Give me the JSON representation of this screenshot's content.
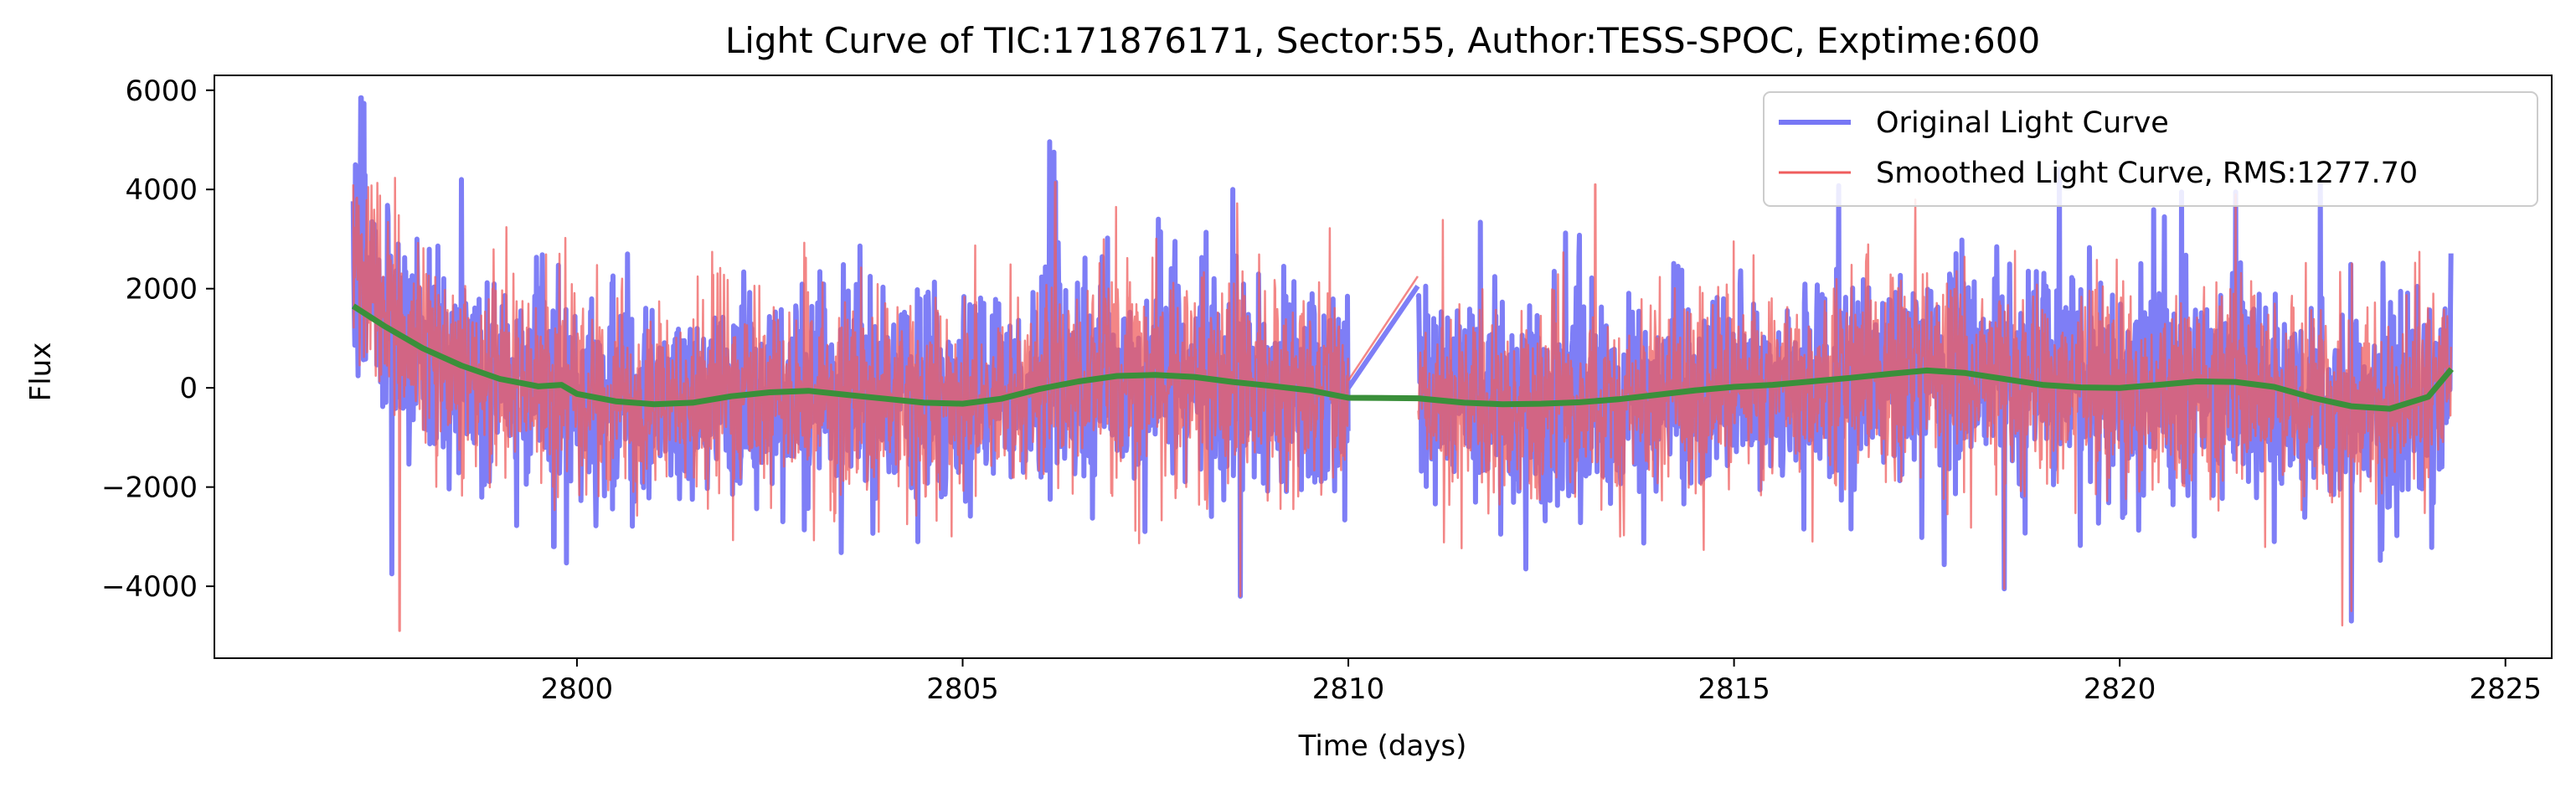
{
  "chart_data": {
    "type": "line",
    "title": "Light Curve of TIC:171876171, Sector:55, Author:TESS-SPOC, Exptime:600",
    "xlabel": "Time (days)",
    "ylabel": "Flux",
    "xlim": [
      2795.3,
      2825.6
    ],
    "ylim": [
      -5450,
      6300
    ],
    "x_ticks": [
      2800,
      2805,
      2810,
      2815,
      2820,
      2825
    ],
    "y_ticks": [
      -4000,
      -2000,
      0,
      2000,
      4000,
      6000
    ],
    "x_tick_labels": [
      "2800",
      "2805",
      "2810",
      "2815",
      "2820",
      "2825"
    ],
    "y_tick_labels": [
      "−4000",
      "−2000",
      "0",
      "2000",
      "4000",
      "6000"
    ],
    "grid": false,
    "legend_position": "top-right",
    "gap": [
      2810.0,
      2810.9
    ],
    "series": [
      {
        "name": "Original Light Curve",
        "color": "#7777f5",
        "style": "noisy-flux",
        "x_range": [
          2797.1,
          2824.3
        ],
        "noise_amplitude": 1277.7,
        "peaks": [
          [
            2797.2,
            5850
          ],
          [
            2798.5,
            4200
          ],
          [
            2806.2,
            4150
          ],
          [
            2808.5,
            4000
          ],
          [
            2820.8,
            3950
          ],
          [
            2821.5,
            3950
          ],
          [
            2822.6,
            4100
          ],
          [
            2811.0,
            2050
          ]
        ],
        "troughs": [
          [
            2797.6,
            -3750
          ],
          [
            2799.7,
            -3200
          ],
          [
            2808.6,
            -4200
          ],
          [
            2818.5,
            -4050
          ],
          [
            2822.0,
            -3100
          ],
          [
            2823.0,
            -4700
          ],
          [
            2810.0,
            -2950
          ],
          [
            2812.3,
            -3650
          ]
        ]
      },
      {
        "name": "Smoothed Light Curve, RMS:1277.70",
        "color": "#ef5d5d",
        "style": "noisy-flux",
        "x_range": [
          2797.1,
          2824.3
        ],
        "noise_amplitude": 1277.7,
        "peaks": [
          [
            2797.1,
            4100
          ],
          [
            2806.2,
            4150
          ],
          [
            2821.5,
            3900
          ],
          [
            2823.0,
            2700
          ],
          [
            2813.2,
            4100
          ]
        ],
        "troughs": [
          [
            2797.7,
            -4900
          ],
          [
            2808.6,
            -4200
          ],
          [
            2818.5,
            -4050
          ],
          [
            2823.0,
            -4500
          ]
        ]
      },
      {
        "name": "",
        "color": "#3a8f3a",
        "style": "trend",
        "x": [
          2797.1,
          2797.5,
          2798.0,
          2798.5,
          2799.0,
          2799.5,
          2799.8,
          2800.0,
          2800.5,
          2801.0,
          2801.5,
          2802.0,
          2802.5,
          2803.0,
          2803.5,
          2804.0,
          2804.5,
          2805.0,
          2805.5,
          2806.0,
          2806.5,
          2807.0,
          2807.5,
          2808.0,
          2808.5,
          2809.0,
          2809.5,
          2810.0,
          2810.9,
          2811.5,
          2812.0,
          2812.5,
          2813.0,
          2813.5,
          2814.0,
          2814.5,
          2815.0,
          2815.5,
          2816.0,
          2816.5,
          2817.0,
          2817.5,
          2818.0,
          2818.5,
          2819.0,
          2819.5,
          2820.0,
          2820.5,
          2821.0,
          2821.5,
          2822.0,
          2822.5,
          2823.0,
          2823.5,
          2824.0,
          2824.3
        ],
        "y": [
          1650,
          1250,
          800,
          450,
          180,
          30,
          60,
          -120,
          -270,
          -330,
          -300,
          -170,
          -90,
          -60,
          -140,
          -220,
          -300,
          -320,
          -220,
          -20,
          130,
          240,
          260,
          220,
          120,
          40,
          -50,
          -200,
          -210,
          -300,
          -330,
          -320,
          -290,
          -230,
          -140,
          -50,
          20,
          60,
          130,
          200,
          280,
          350,
          300,
          180,
          60,
          10,
          0,
          60,
          130,
          120,
          20,
          -200,
          -370,
          -420,
          -180,
          380
        ]
      }
    ]
  }
}
